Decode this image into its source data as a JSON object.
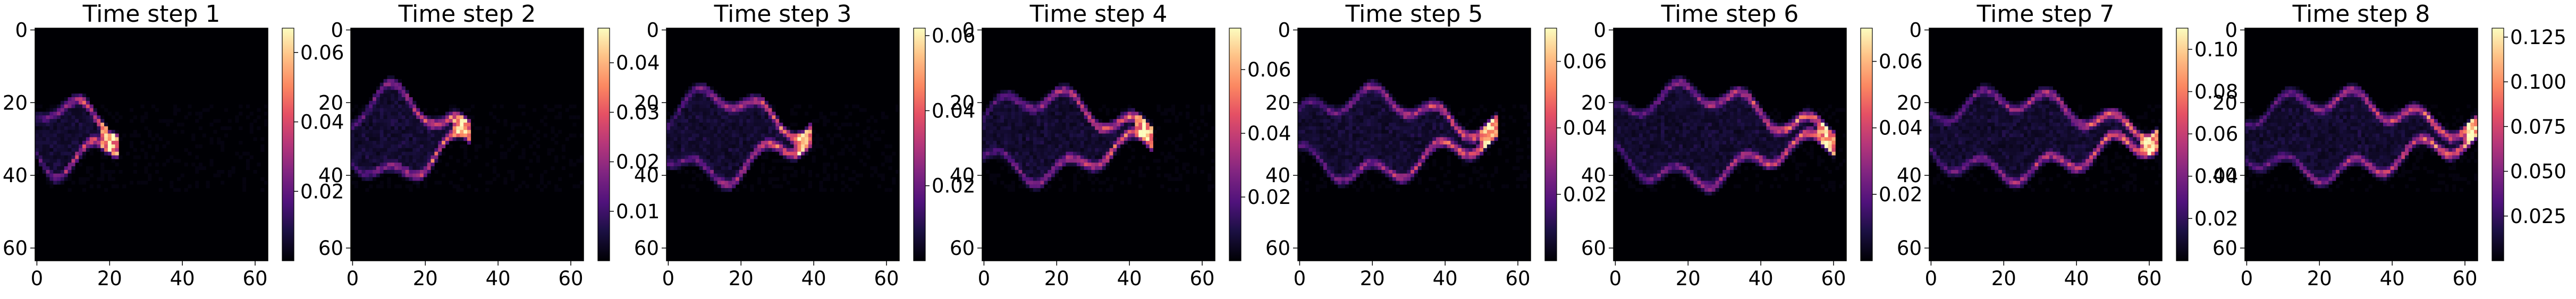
{
  "chart_data": [
    {
      "type": "heatmap",
      "title": "Time step 1",
      "x_ticks": [
        "0",
        "20",
        "40",
        "60"
      ],
      "y_ticks": [
        "0",
        "20",
        "40",
        "60"
      ],
      "grid_size": 64,
      "colormap": "magma",
      "colorbar_ticks": [
        "0.02",
        "0.04",
        "0.06"
      ],
      "colorbar_tick_values": [
        0.02,
        0.04,
        0.06
      ],
      "value_range": [
        0.0,
        0.067
      ],
      "front_x": 20,
      "spread": 0.6
    },
    {
      "type": "heatmap",
      "title": "Time step 2",
      "x_ticks": [
        "0",
        "20",
        "40",
        "60"
      ],
      "y_ticks": [
        "0",
        "20",
        "40",
        "60"
      ],
      "grid_size": 64,
      "colormap": "magma",
      "colorbar_ticks": [
        "0.01",
        "0.02",
        "0.03",
        "0.04"
      ],
      "colorbar_tick_values": [
        0.01,
        0.02,
        0.03,
        0.04
      ],
      "value_range": [
        0.0,
        0.047
      ],
      "front_x": 30,
      "spread": 0.85
    },
    {
      "type": "heatmap",
      "title": "Time step 3",
      "x_ticks": [
        "0",
        "20",
        "40",
        "60"
      ],
      "y_ticks": [
        "0",
        "20",
        "40",
        "60"
      ],
      "grid_size": 64,
      "colormap": "magma",
      "colorbar_ticks": [
        "0.02",
        "0.04",
        "0.06"
      ],
      "colorbar_tick_values": [
        0.02,
        0.04,
        0.06
      ],
      "value_range": [
        0.0,
        0.062
      ],
      "front_x": 37,
      "spread": 0.8
    },
    {
      "type": "heatmap",
      "title": "Time step 4",
      "x_ticks": [
        "0",
        "20",
        "40",
        "60"
      ],
      "y_ticks": [
        "0",
        "20",
        "40",
        "60"
      ],
      "grid_size": 64,
      "colormap": "magma",
      "colorbar_ticks": [
        "0.02",
        "0.04",
        "0.06"
      ],
      "colorbar_tick_values": [
        0.02,
        0.04,
        0.06
      ],
      "value_range": [
        0.0,
        0.073
      ],
      "front_x": 44,
      "spread": 0.75
    },
    {
      "type": "heatmap",
      "title": "Time step 5",
      "x_ticks": [
        "0",
        "20",
        "40",
        "60"
      ],
      "y_ticks": [
        "0",
        "20",
        "40",
        "60"
      ],
      "grid_size": 64,
      "colormap": "magma",
      "colorbar_ticks": [
        "0.02",
        "0.04",
        "0.06"
      ],
      "colorbar_tick_values": [
        0.02,
        0.04,
        0.06
      ],
      "value_range": [
        0.0,
        0.07
      ],
      "front_x": 52,
      "spread": 0.75
    },
    {
      "type": "heatmap",
      "title": "Time step 6",
      "x_ticks": [
        "0",
        "20",
        "40",
        "60"
      ],
      "y_ticks": [
        "0",
        "20",
        "40",
        "60"
      ],
      "grid_size": 64,
      "colormap": "magma",
      "colorbar_ticks": [
        "0.02",
        "0.04",
        "0.06"
      ],
      "colorbar_tick_values": [
        0.02,
        0.04,
        0.06
      ],
      "value_range": [
        0.0,
        0.07
      ],
      "front_x": 58,
      "spread": 0.9
    },
    {
      "type": "heatmap",
      "title": "Time step 7",
      "x_ticks": [
        "0",
        "20",
        "40",
        "60"
      ],
      "y_ticks": [
        "0",
        "20",
        "40",
        "60"
      ],
      "grid_size": 64,
      "colormap": "magma",
      "colorbar_ticks": [
        "0.02",
        "0.04",
        "0.06",
        "0.08",
        "0.10"
      ],
      "colorbar_tick_values": [
        0.02,
        0.04,
        0.06,
        0.08,
        0.1
      ],
      "value_range": [
        0.0,
        0.11
      ],
      "front_x": 60,
      "spread": 0.7
    },
    {
      "type": "heatmap",
      "title": "Time step 8",
      "x_ticks": [
        "0",
        "20",
        "40",
        "60"
      ],
      "y_ticks": [
        "0",
        "20",
        "40",
        "60"
      ],
      "grid_size": 64,
      "colormap": "magma",
      "colorbar_ticks": [
        "0.025",
        "0.050",
        "0.075",
        "0.100",
        "0.125"
      ],
      "colorbar_tick_values": [
        0.025,
        0.05,
        0.075,
        0.1,
        0.125
      ],
      "value_range": [
        0.0,
        0.13
      ],
      "front_x": 62,
      "spread": 0.7
    }
  ]
}
